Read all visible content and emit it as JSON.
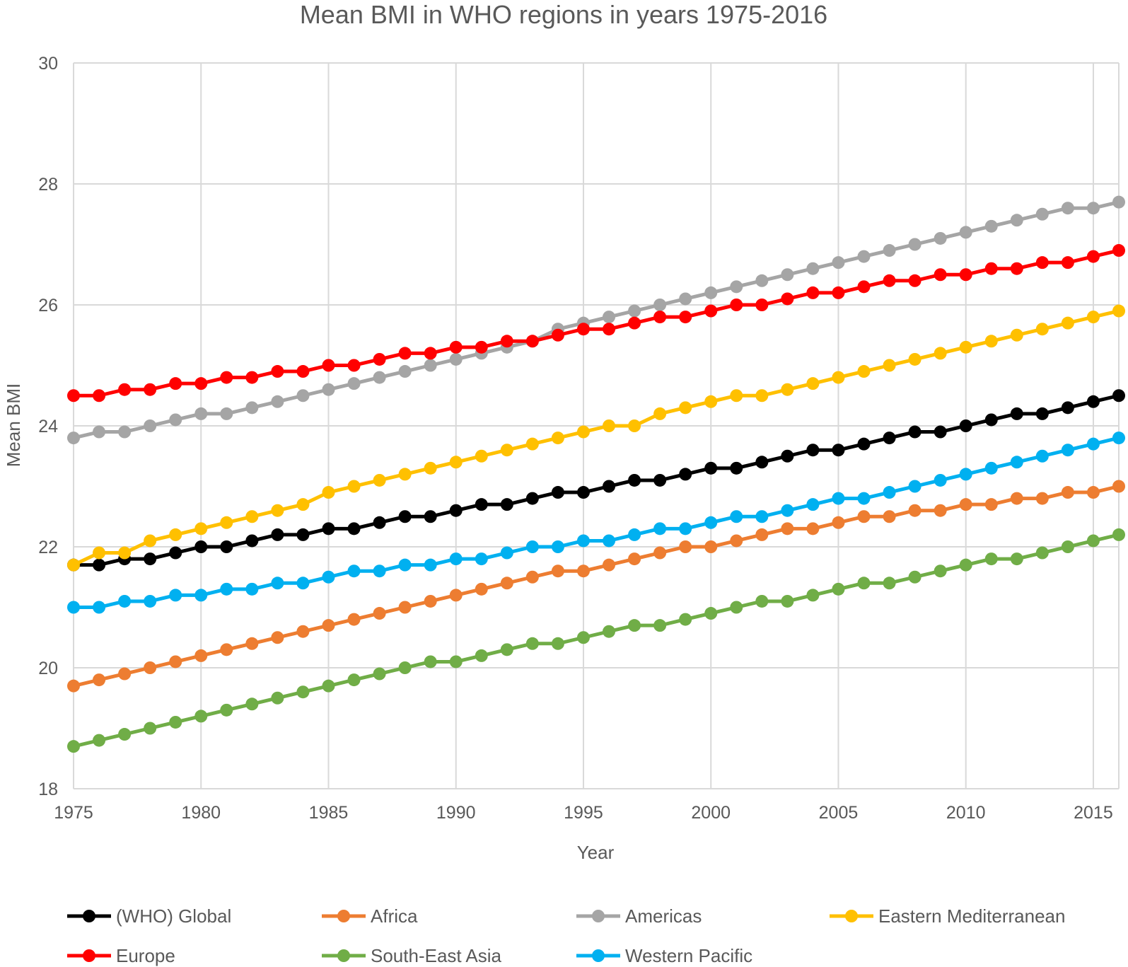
{
  "chart_data": {
    "type": "line",
    "title": "Mean BMI in WHO regions in years 1975-2016",
    "xlabel": "Year",
    "ylabel": "Mean BMI",
    "xlim": [
      1975,
      2016
    ],
    "ylim": [
      18,
      30
    ],
    "y_ticks": [
      "18",
      "20",
      "22",
      "24",
      "26",
      "28",
      "30"
    ],
    "x_ticks": [
      "1975",
      "1980",
      "1985",
      "1990",
      "1995",
      "2000",
      "2005",
      "2010",
      "2015"
    ],
    "grid": true,
    "legend_position": "bottom",
    "x": [
      1975,
      1976,
      1977,
      1978,
      1979,
      1980,
      1981,
      1982,
      1983,
      1984,
      1985,
      1986,
      1987,
      1988,
      1989,
      1990,
      1991,
      1992,
      1993,
      1994,
      1995,
      1996,
      1997,
      1998,
      1999,
      2000,
      2001,
      2002,
      2003,
      2004,
      2005,
      2006,
      2007,
      2008,
      2009,
      2010,
      2011,
      2012,
      2013,
      2014,
      2015,
      2016
    ],
    "series": [
      {
        "name": "(WHO) Global",
        "color": "#000000",
        "values": [
          21.7,
          21.7,
          21.8,
          21.8,
          21.9,
          22.0,
          22.0,
          22.1,
          22.2,
          22.2,
          22.3,
          22.3,
          22.4,
          22.5,
          22.5,
          22.6,
          22.7,
          22.7,
          22.8,
          22.9,
          22.9,
          23.0,
          23.1,
          23.1,
          23.2,
          23.3,
          23.3,
          23.4,
          23.5,
          23.6,
          23.6,
          23.7,
          23.8,
          23.9,
          23.9,
          24.0,
          24.1,
          24.2,
          24.2,
          24.3,
          24.4,
          24.5
        ]
      },
      {
        "name": "Africa",
        "color": "#ED7D31",
        "values": [
          19.7,
          19.8,
          19.9,
          20.0,
          20.1,
          20.2,
          20.3,
          20.4,
          20.5,
          20.6,
          20.7,
          20.8,
          20.9,
          21.0,
          21.1,
          21.2,
          21.3,
          21.4,
          21.5,
          21.6,
          21.6,
          21.7,
          21.8,
          21.9,
          22.0,
          22.0,
          22.1,
          22.2,
          22.3,
          22.3,
          22.4,
          22.5,
          22.5,
          22.6,
          22.6,
          22.7,
          22.7,
          22.8,
          22.8,
          22.9,
          22.9,
          23.0
        ]
      },
      {
        "name": "Americas",
        "color": "#A5A5A5",
        "values": [
          23.8,
          23.9,
          23.9,
          24.0,
          24.1,
          24.2,
          24.2,
          24.3,
          24.4,
          24.5,
          24.6,
          24.7,
          24.8,
          24.9,
          25.0,
          25.1,
          25.2,
          25.3,
          25.4,
          25.6,
          25.7,
          25.8,
          25.9,
          26.0,
          26.1,
          26.2,
          26.3,
          26.4,
          26.5,
          26.6,
          26.7,
          26.8,
          26.9,
          27.0,
          27.1,
          27.2,
          27.3,
          27.4,
          27.5,
          27.6,
          27.6,
          27.7
        ]
      },
      {
        "name": "Eastern Mediterranean",
        "color": "#FFC000",
        "values": [
          21.7,
          21.9,
          21.9,
          22.1,
          22.2,
          22.3,
          22.4,
          22.5,
          22.6,
          22.7,
          22.9,
          23.0,
          23.1,
          23.2,
          23.3,
          23.4,
          23.5,
          23.6,
          23.7,
          23.8,
          23.9,
          24.0,
          24.0,
          24.2,
          24.3,
          24.4,
          24.5,
          24.5,
          24.6,
          24.7,
          24.8,
          24.9,
          25.0,
          25.1,
          25.2,
          25.3,
          25.4,
          25.5,
          25.6,
          25.7,
          25.8,
          25.9
        ]
      },
      {
        "name": "Europe",
        "color": "#FF0000",
        "values": [
          24.5,
          24.5,
          24.6,
          24.6,
          24.7,
          24.7,
          24.8,
          24.8,
          24.9,
          24.9,
          25.0,
          25.0,
          25.1,
          25.2,
          25.2,
          25.3,
          25.3,
          25.4,
          25.4,
          25.5,
          25.6,
          25.6,
          25.7,
          25.8,
          25.8,
          25.9,
          26.0,
          26.0,
          26.1,
          26.2,
          26.2,
          26.3,
          26.4,
          26.4,
          26.5,
          26.5,
          26.6,
          26.6,
          26.7,
          26.7,
          26.8,
          26.9
        ]
      },
      {
        "name": "South-East Asia",
        "color": "#70AD47",
        "values": [
          18.7,
          18.8,
          18.9,
          19.0,
          19.1,
          19.2,
          19.3,
          19.4,
          19.5,
          19.6,
          19.7,
          19.8,
          19.9,
          20.0,
          20.1,
          20.1,
          20.2,
          20.3,
          20.4,
          20.4,
          20.5,
          20.6,
          20.7,
          20.7,
          20.8,
          20.9,
          21.0,
          21.1,
          21.1,
          21.2,
          21.3,
          21.4,
          21.4,
          21.5,
          21.6,
          21.7,
          21.8,
          21.8,
          21.9,
          22.0,
          22.1,
          22.2
        ]
      },
      {
        "name": "Western Pacific",
        "color": "#00B0F0",
        "values": [
          21.0,
          21.0,
          21.1,
          21.1,
          21.2,
          21.2,
          21.3,
          21.3,
          21.4,
          21.4,
          21.5,
          21.6,
          21.6,
          21.7,
          21.7,
          21.8,
          21.8,
          21.9,
          22.0,
          22.0,
          22.1,
          22.1,
          22.2,
          22.3,
          22.3,
          22.4,
          22.5,
          22.5,
          22.6,
          22.7,
          22.8,
          22.8,
          22.9,
          23.0,
          23.1,
          23.2,
          23.3,
          23.4,
          23.5,
          23.6,
          23.7,
          23.8
        ]
      }
    ]
  }
}
